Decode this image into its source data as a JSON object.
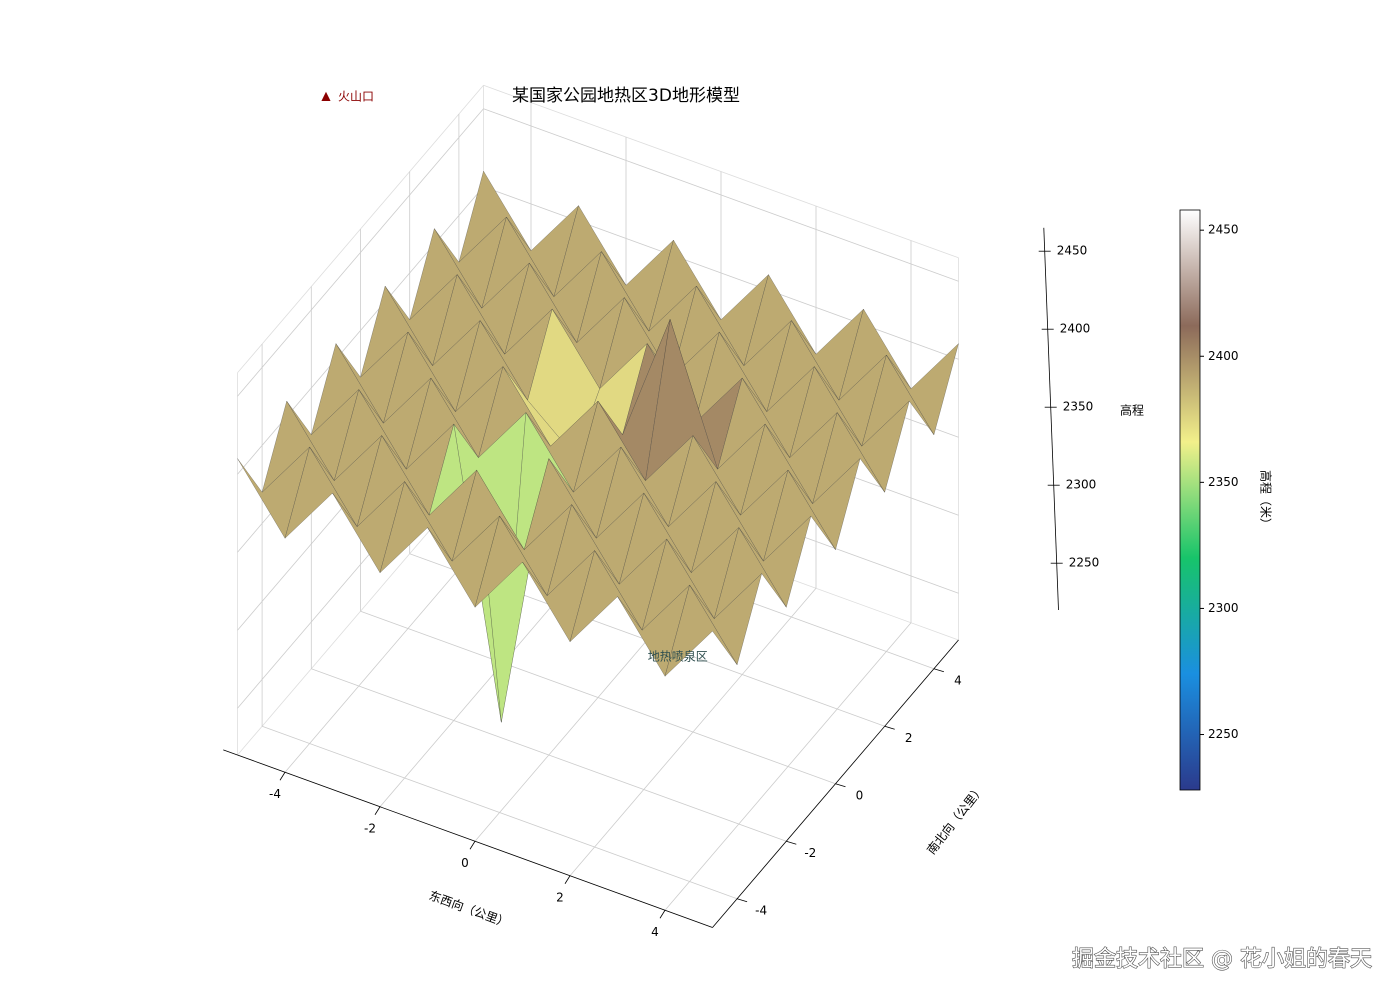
{
  "chart_data": {
    "type": "surface3d",
    "title": "某国家公园地热区3D地形模型",
    "xlabel": "东西向（公里）",
    "ylabel": "南北向（公里）",
    "zlabel": "高程",
    "colorbar_label": "高程（米）",
    "legend_marker": "▲",
    "legend_label": "火山口",
    "legend_color": "#8b0000",
    "annotation": "地热喷泉区",
    "watermark": "掘金技术社区 @ 花小姐的春天",
    "x": [
      -5,
      -4,
      -3,
      -2,
      -1,
      0,
      1,
      2,
      3,
      4,
      5
    ],
    "y": [
      -5,
      -4,
      -3,
      -2,
      -1,
      0,
      1,
      2,
      3,
      4,
      5
    ],
    "z": [
      [
        2410,
        2370,
        2410,
        2370,
        2410,
        2370,
        2410,
        2370,
        2410,
        2370,
        2410
      ],
      [
        2370,
        2410,
        2370,
        2410,
        2370,
        2410,
        2370,
        2410,
        2370,
        2410,
        2370
      ],
      [
        2410,
        2370,
        2410,
        2370,
        2410,
        2370,
        2410,
        2370,
        2410,
        2370,
        2410
      ],
      [
        2370,
        2410,
        2370,
        2410,
        2230,
        2410,
        2370,
        2410,
        2370,
        2410,
        2370
      ],
      [
        2410,
        2370,
        2410,
        2370,
        2410,
        2370,
        2410,
        2370,
        2410,
        2370,
        2410
      ],
      [
        2370,
        2410,
        2370,
        2410,
        2370,
        2410,
        2370,
        2410,
        2370,
        2410,
        2370
      ],
      [
        2410,
        2370,
        2410,
        2370,
        2345,
        2370,
        2455,
        2370,
        2410,
        2370,
        2410
      ],
      [
        2370,
        2410,
        2370,
        2410,
        2370,
        2410,
        2370,
        2410,
        2370,
        2410,
        2370
      ],
      [
        2410,
        2370,
        2410,
        2370,
        2410,
        2370,
        2410,
        2370,
        2410,
        2370,
        2410
      ],
      [
        2370,
        2410,
        2370,
        2410,
        2370,
        2410,
        2370,
        2410,
        2370,
        2410,
        2370
      ],
      [
        2410,
        2370,
        2410,
        2370,
        2410,
        2370,
        2410,
        2370,
        2410,
        2370,
        2410
      ]
    ],
    "xlim": [
      -5,
      5
    ],
    "ylim": [
      -5,
      5
    ],
    "zlim": [
      2220,
      2465
    ],
    "xticks": [
      -4,
      -2,
      0,
      2,
      4
    ],
    "yticks": [
      -4,
      -2,
      0,
      2,
      4
    ],
    "zticks": [
      2250,
      2300,
      2350,
      2400,
      2450
    ],
    "clim": [
      2228,
      2458
    ],
    "cticks": [
      2250,
      2300,
      2350,
      2400,
      2450
    ],
    "colormap": [
      "#2b3a8c",
      "#1a8fe0",
      "#17c46a",
      "#f2f08a",
      "#8c6a5a",
      "#ffffff"
    ],
    "grid": true
  }
}
